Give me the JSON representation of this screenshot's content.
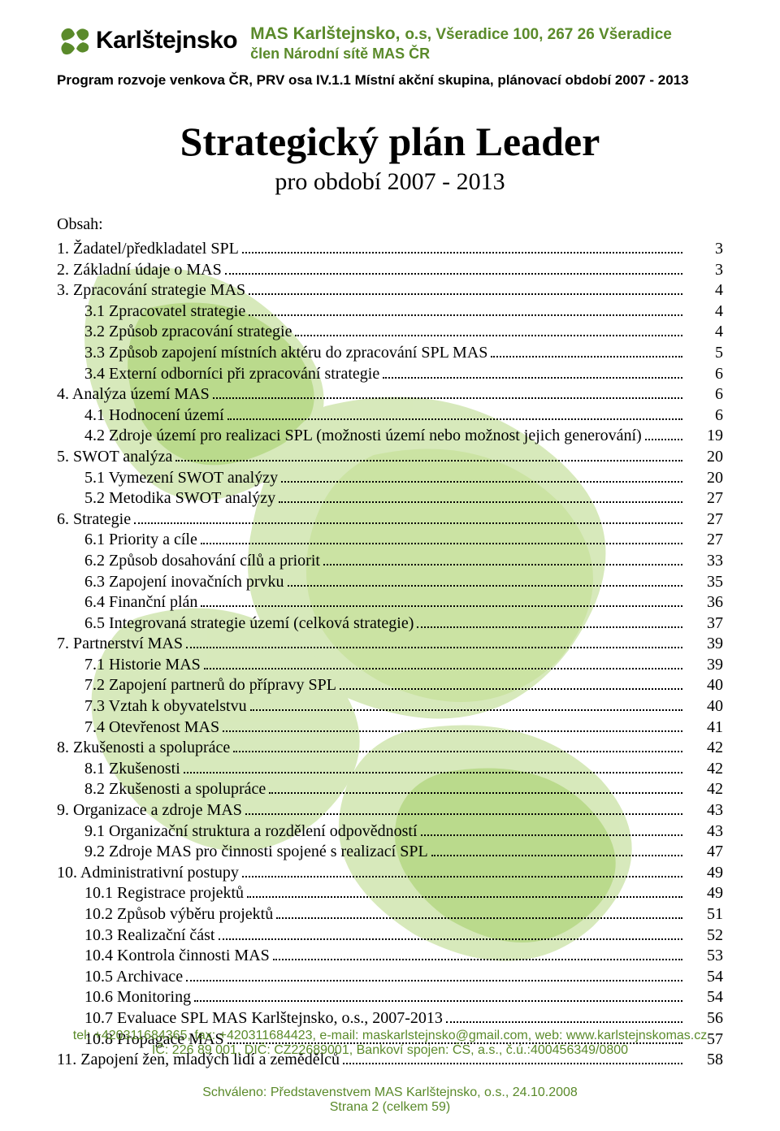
{
  "colors": {
    "green": "#5a8a2a",
    "wm_light": "#d5e8b8",
    "wm_mid": "#b7d986",
    "text": "#000000",
    "background": "#ffffff"
  },
  "header": {
    "logo_text": "Karlštejnsko",
    "mas_title": "MAS Karlštejnsko, ",
    "mas_suffix": "o.s, Všeradice 100, 267 26 Všeradice",
    "mas_subtitle": "člen  Národní sítě MAS ČR",
    "program_line": "Program rozvoje venkova ČR, PRV osa IV.1.1 Místní akční skupina, plánovací období 2007 - 2013"
  },
  "title": "Strategický plán Leader",
  "subtitle": "pro období 2007 - 2013",
  "obsah_label": "Obsah:",
  "toc": [
    {
      "label": "1.  Žadatel/předkladatel SPL",
      "page": "3",
      "indent": 0
    },
    {
      "label": "2.  Základní údaje o MAS",
      "page": "3",
      "indent": 0
    },
    {
      "label": "3.  Zpracování strategie MAS",
      "page": "4",
      "indent": 0
    },
    {
      "label": "3.1 Zpracovatel strategie",
      "page": "4",
      "indent": 1
    },
    {
      "label": "3.2 Způsob zpracování strategie",
      "page": "4",
      "indent": 1
    },
    {
      "label": "3.3 Způsob zapojení místních aktéru do zpracování SPL MAS",
      "page": "5",
      "indent": 1
    },
    {
      "label": "3.4 Externí odborníci při zpracování strategie",
      "page": "6",
      "indent": 1
    },
    {
      "label": "4.  Analýza území MAS",
      "page": "6",
      "indent": 0
    },
    {
      "label": "4.1 Hodnocení území",
      "page": "6",
      "indent": 1
    },
    {
      "label": "4.2 Zdroje území pro realizaci SPL (možnosti území nebo možnost jejich generování)",
      "page": "19",
      "indent": 1
    },
    {
      "label": "5.  SWOT analýza",
      "page": "20",
      "indent": 0
    },
    {
      "label": "5.1 Vymezení SWOT analýzy",
      "page": "20",
      "indent": 1
    },
    {
      "label": "5.2 Metodika SWOT analýzy",
      "page": "27",
      "indent": 1
    },
    {
      "label": "6.  Strategie",
      "page": "27",
      "indent": 0
    },
    {
      "label": "6.1 Priority a cíle",
      "page": "27",
      "indent": 1
    },
    {
      "label": "6.2 Způsob dosahování cílů a priorit",
      "page": "33",
      "indent": 1
    },
    {
      "label": "6.3 Zapojení inovačních prvku",
      "page": "35",
      "indent": 1
    },
    {
      "label": "6.4 Finanční plán",
      "page": "36",
      "indent": 1
    },
    {
      "label": "6.5 Integrovaná strategie území (celková strategie)",
      "page": "37",
      "indent": 1
    },
    {
      "label": "7.  Partnerství MAS",
      "page": "39",
      "indent": 0
    },
    {
      "label": "7.1 Historie MAS",
      "page": "39",
      "indent": 1
    },
    {
      "label": "7.2 Zapojení partnerů do přípravy SPL",
      "page": "40",
      "indent": 1
    },
    {
      "label": "7.3 Vztah k obyvatelstvu",
      "page": "40",
      "indent": 1
    },
    {
      "label": "7.4 Otevřenost MAS",
      "page": "41",
      "indent": 1
    },
    {
      "label": "8.  Zkušenosti a spolupráce",
      "page": "42",
      "indent": 0
    },
    {
      "label": "8.1 Zkušenosti",
      "page": "42",
      "indent": 1
    },
    {
      "label": "8.2 Zkušenosti a spolupráce",
      "page": "42",
      "indent": 1
    },
    {
      "label": "9.  Organizace a zdroje MAS",
      "page": "43",
      "indent": 0
    },
    {
      "label": "9.1 Organizační struktura a rozdělení odpovědností",
      "page": "43",
      "indent": 1
    },
    {
      "label": "9.2 Zdroje MAS pro činnosti spojené s realizací SPL",
      "page": "47",
      "indent": 1
    },
    {
      "label": "10. Administrativní postupy",
      "page": "49",
      "indent": 0
    },
    {
      "label": "10.1 Registrace projektů",
      "page": "49",
      "indent": 1
    },
    {
      "label": "10.2 Způsob výběru projektů",
      "page": "51",
      "indent": 1
    },
    {
      "label": "10.3 Realizační část",
      "page": "52",
      "indent": 1
    },
    {
      "label": "10.4 Kontrola činnosti MAS",
      "page": "53",
      "indent": 1
    },
    {
      "label": "10.5 Archivace",
      "page": "54",
      "indent": 1
    },
    {
      "label": "10.6 Monitoring",
      "page": "54",
      "indent": 1
    },
    {
      "label": "10.7 Evaluace SPL MAS Karlštejnsko, o.s., 2007-2013",
      "page": "56",
      "indent": 1
    },
    {
      "label": "10.8 Propagace MAS",
      "page": "57",
      "indent": 1
    },
    {
      "label": "11. Zapojení žen, mladých lidí a zemědělců",
      "page": "58",
      "indent": 0
    }
  ],
  "approval": {
    "line1": "Schváleno: Představenstvem MAS Karlštejnsko, o.s., 24.10.2008",
    "line2": "Strana 2 (celkem 59)"
  },
  "footer": {
    "line1": "tel: +420311684365,  fax: +420311684423,  e-mail: maskarlstejnsko@gmail.com,  web: www.karlstejnskomas.cz",
    "line2": "IČ: 226 89 001,  DIČ: CZ22689001,  Bankoví spojen: ČS, a.s., č.ú.:400456349/0800"
  },
  "watermark": {
    "shape_count": 6,
    "colors": [
      "#d5e8b8",
      "#b7d986",
      "#c9e29f"
    ]
  }
}
